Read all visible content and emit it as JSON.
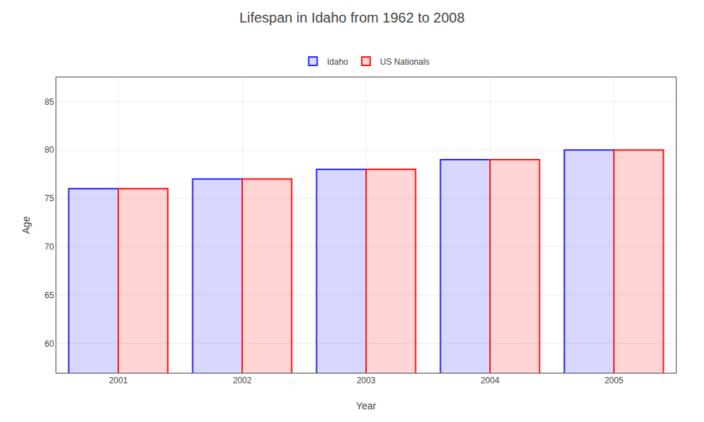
{
  "chart_data": {
    "type": "bar",
    "title": "Lifespan in Idaho from 1962 to 2008",
    "x_label": "Year",
    "y_label": "Age",
    "categories": [
      "2001",
      "2002",
      "2003",
      "2004",
      "2005"
    ],
    "series": [
      {
        "name": "Idaho",
        "color": "#2222ff",
        "values": [
          76.0,
          77.0,
          78.0,
          79.0,
          80.0
        ]
      },
      {
        "name": "US Nationals",
        "color": "#ff1111",
        "values": [
          76.0,
          77.0,
          78.0,
          79.0,
          80.0
        ]
      }
    ],
    "ylim": [
      57.0,
      87.5
    ],
    "yticks": [
      60,
      65,
      70,
      75,
      80,
      85
    ],
    "grid": true,
    "legend": "top"
  }
}
